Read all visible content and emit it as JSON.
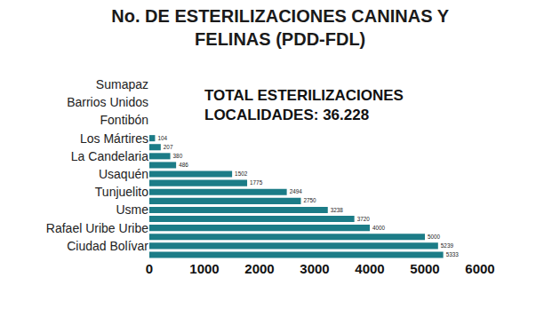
{
  "chart_data": {
    "type": "bar",
    "title": "No. DE ESTERILIZACIONES CANINAS Y\nFELINAS (PDD-FDL)",
    "annotation": "TOTAL ESTERILIZACIONES\nLOCALIDADES: 36.228",
    "orientation": "horizontal",
    "categories": [
      "Sumapaz",
      null,
      "Barrios Unidos",
      null,
      "Fontibón",
      null,
      "Los Mártires",
      null,
      "La Candelaria",
      null,
      "Usaquén",
      null,
      "Tunjuelito",
      null,
      "Usme",
      null,
      "Rafael Uribe Uribe",
      null,
      "Ciudad Bolívar",
      null
    ],
    "values": [
      null,
      null,
      null,
      null,
      null,
      null,
      104,
      207,
      380,
      486,
      1502,
      1775,
      2494,
      2750,
      3238,
      3720,
      4000,
      5000,
      5239,
      5333
    ],
    "color": "#1c7c87",
    "xlim": [
      0,
      6000
    ],
    "xticks": [
      0,
      1000,
      2000,
      3000,
      4000,
      5000,
      6000
    ],
    "grid": false,
    "data_labels": true
  }
}
